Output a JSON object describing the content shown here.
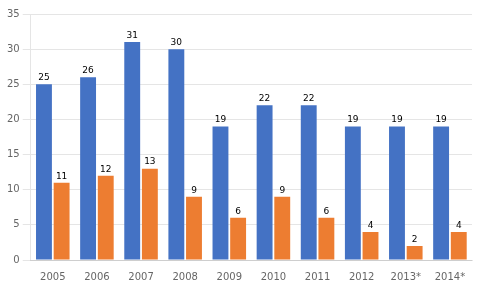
{
  "chart_data": {
    "type": "bar",
    "categories": [
      "2005",
      "2006",
      "2007",
      "2008",
      "2009",
      "2010",
      "2011",
      "2012",
      "2013*",
      "2014*"
    ],
    "series": [
      {
        "color": "#4472C4",
        "values": [
          25,
          26,
          31,
          30,
          19,
          22,
          22,
          19,
          19,
          19
        ]
      },
      {
        "color": "#ED7D31",
        "values": [
          11,
          12,
          13,
          9,
          6,
          9,
          6,
          4,
          2,
          4
        ]
      }
    ],
    "ylim": [
      0,
      35
    ],
    "yticks": [
      0,
      5,
      10,
      15,
      20,
      25,
      30,
      35
    ],
    "grid": true,
    "data_labels": true
  }
}
